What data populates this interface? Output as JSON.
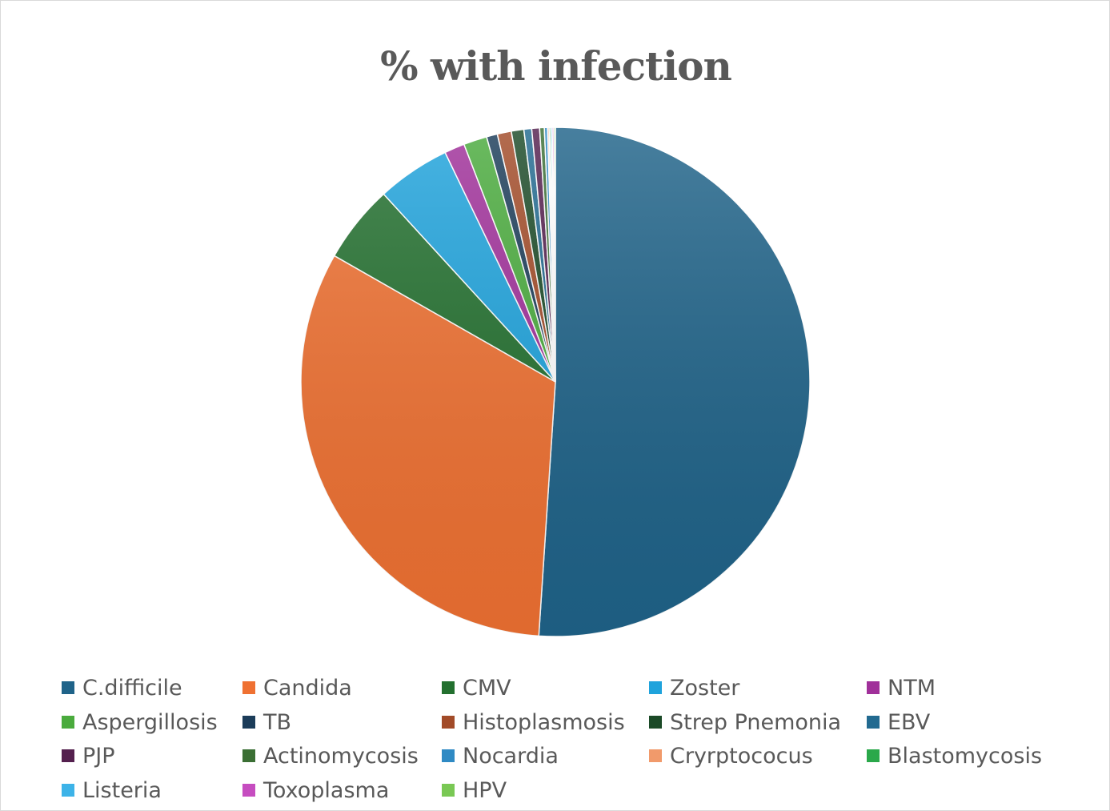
{
  "chart_data": {
    "type": "pie",
    "title": "% with infection",
    "legend_position": "bottom",
    "categories": [
      "C.difficile",
      "Candida",
      "CMV",
      "Zoster",
      "NTM",
      "Aspergillosis",
      "TB",
      "Histoplasmosis",
      "Strep Pnemonia",
      "EBV",
      "PJP",
      "Actinomycosis",
      "Nocardia",
      "Cryrptococus",
      "Blastomycosis",
      "Listeria",
      "Toxoplasma",
      "HPV"
    ],
    "values": [
      51.5,
      32.5,
      5.0,
      4.7,
      1.3,
      1.5,
      0.7,
      0.9,
      0.8,
      0.5,
      0.5,
      0.3,
      0.2,
      0.1,
      0.1,
      0.1,
      0.1,
      0.1
    ],
    "colors": [
      "#1f6389",
      "#ef7132",
      "#23702f",
      "#1fa3dc",
      "#a0309a",
      "#4aab3d",
      "#1b3c59",
      "#a24b28",
      "#1b4a27",
      "#226a90",
      "#54204e",
      "#3b6f34",
      "#2f8ac4",
      "#f19a6b",
      "#2aa84a",
      "#3db3e8",
      "#c64dc0",
      "#79c854"
    ],
    "start_angle_deg": 0,
    "direction": "clockwise"
  }
}
